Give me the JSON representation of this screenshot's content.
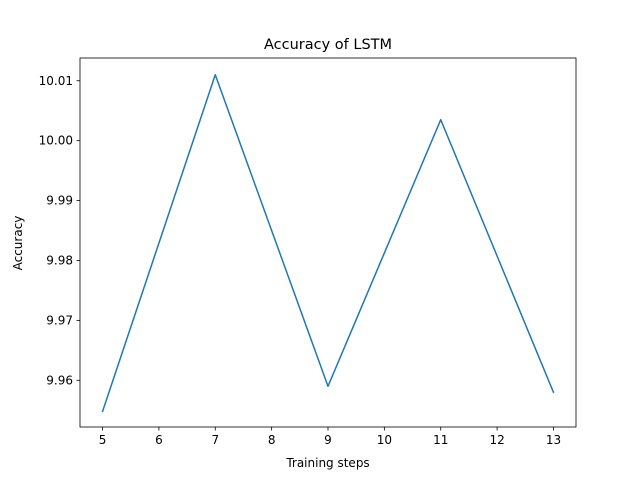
{
  "chart_data": {
    "type": "line",
    "title": "Accuracy of LSTM",
    "xlabel": "Training steps",
    "ylabel": "Accuracy",
    "xlim": [
      4.6,
      13.4
    ],
    "ylim": [
      9.9522,
      10.0138
    ],
    "xticks": [
      5,
      6,
      7,
      8,
      9,
      10,
      11,
      12,
      13
    ],
    "xtick_labels": [
      "5",
      "6",
      "7",
      "8",
      "9",
      "10",
      "11",
      "12",
      "13"
    ],
    "yticks": [
      9.96,
      9.97,
      9.98,
      9.99,
      10.0,
      10.01
    ],
    "ytick_labels": [
      "9.96",
      "9.97",
      "9.98",
      "9.99",
      "10.00",
      "10.01"
    ],
    "grid": false,
    "series": [
      {
        "color": "#1f77b4",
        "x": [
          5,
          7,
          9,
          11,
          13
        ],
        "y": [
          9.9548,
          10.011,
          9.959,
          10.0035,
          9.958
        ]
      }
    ]
  }
}
